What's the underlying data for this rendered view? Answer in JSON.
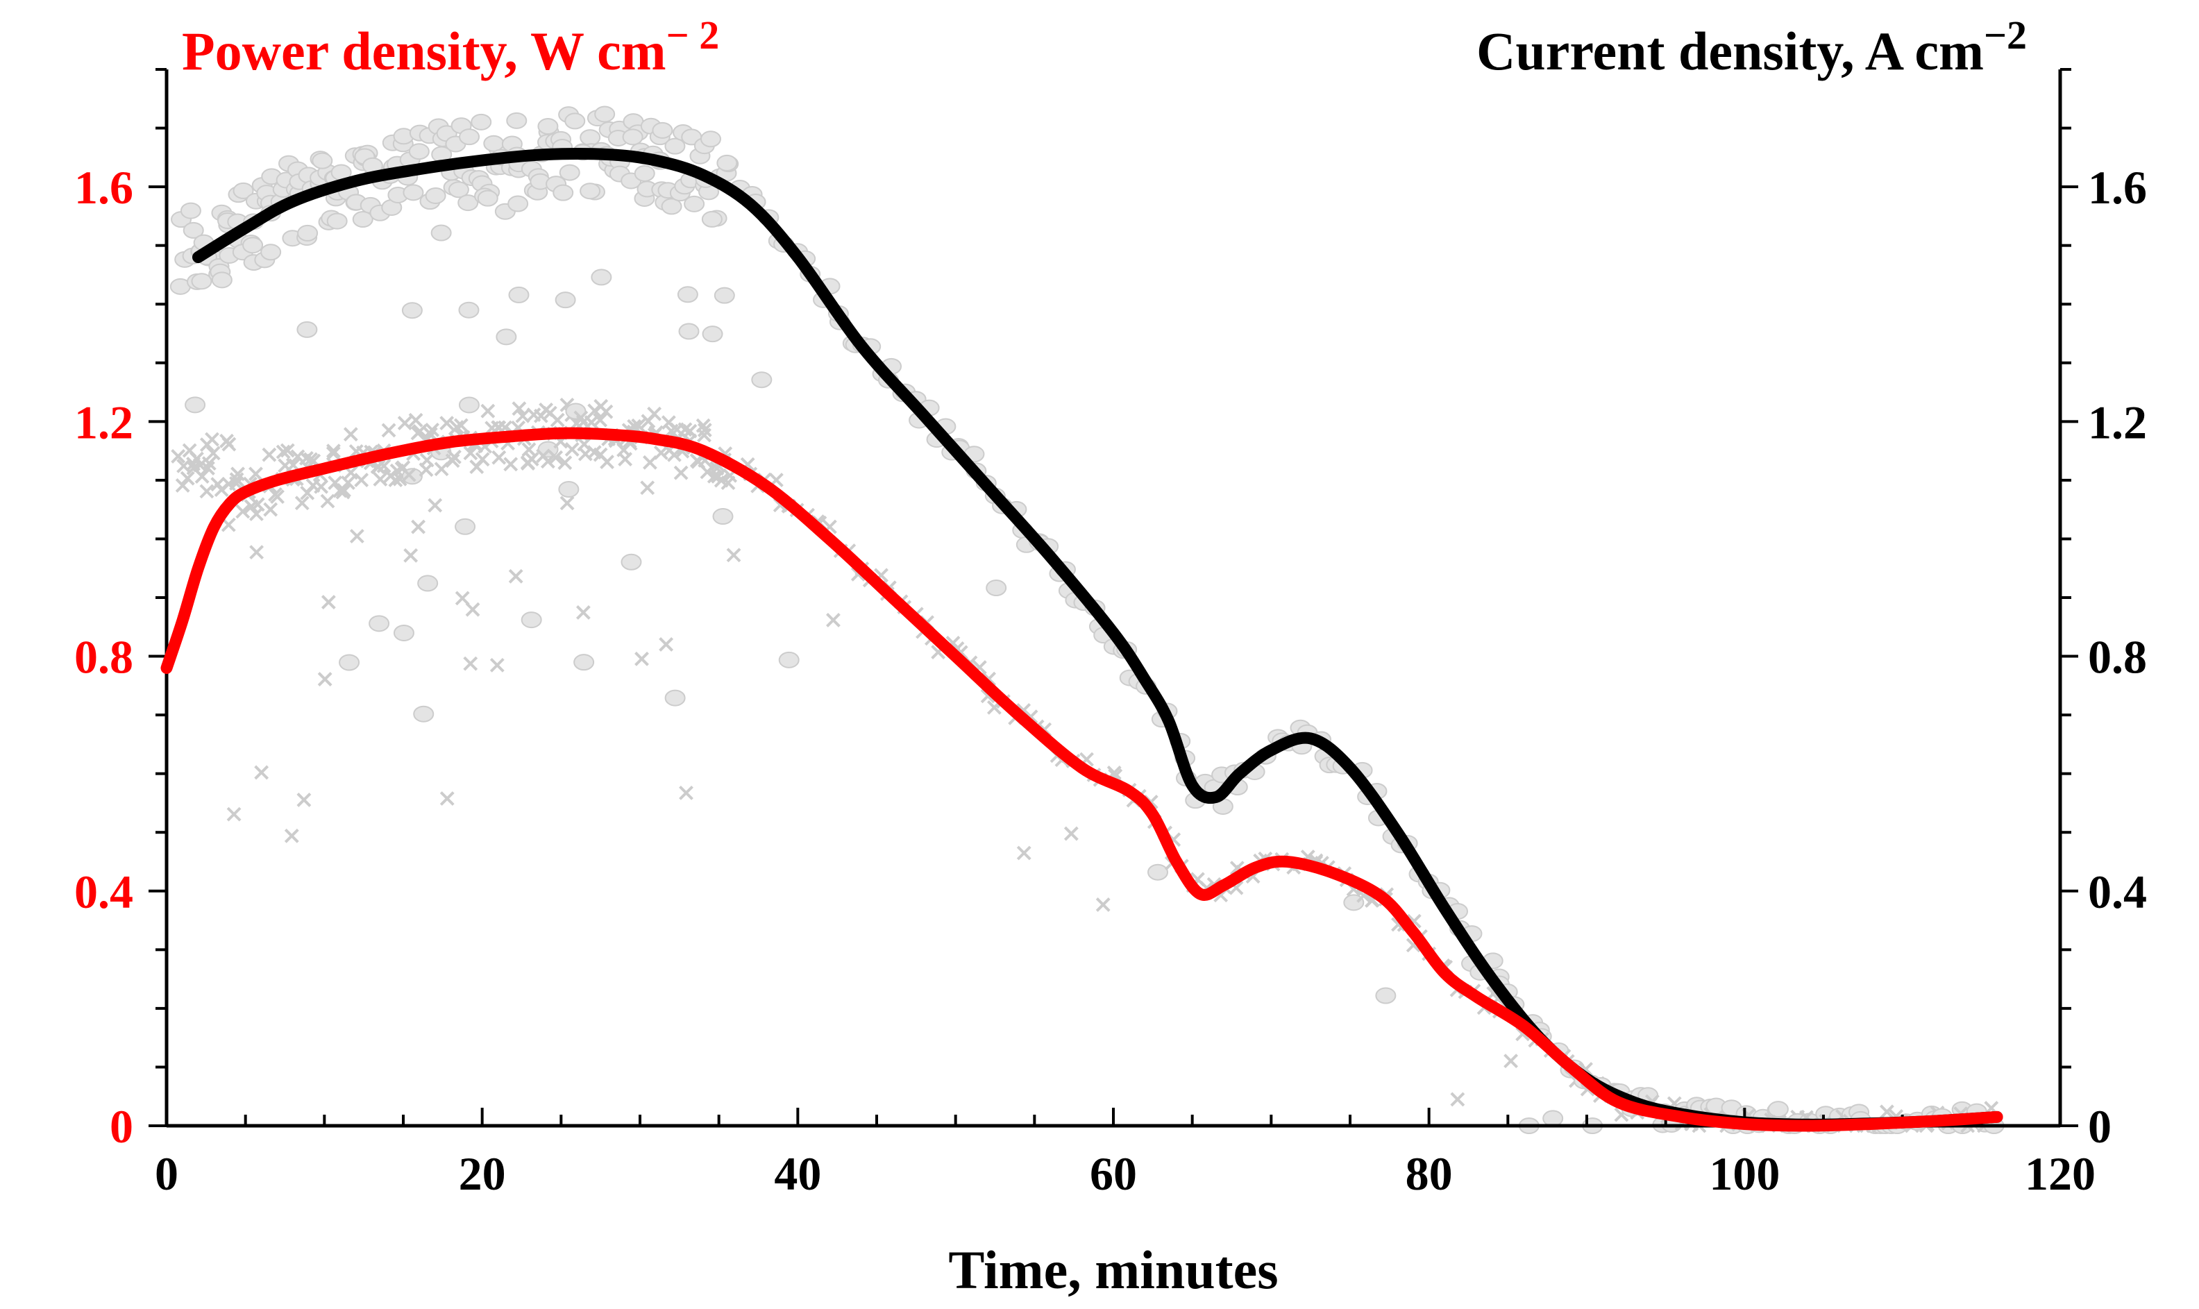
{
  "chart_data": {
    "type": "line",
    "title": "",
    "xlabel": "Time, minutes",
    "ylabel_left": "Power density, W cm − 2",
    "ylabel_right": "Current density, A cm−2",
    "left_axis": {
      "title": "Power density, W cm",
      "superscript": "− 2"
    },
    "right_axis": {
      "title": "Current density, A cm",
      "superscript": "−2"
    },
    "xlim": [
      0,
      120
    ],
    "ylim": [
      0,
      1.8
    ],
    "x_ticks": [
      "0",
      "20",
      "40",
      "60",
      "80",
      "100",
      "120"
    ],
    "x_tick_values": [
      0,
      20,
      40,
      60,
      80,
      100,
      120
    ],
    "y_ticks": [
      "0",
      "0.4",
      "0.8",
      "1.2",
      "1.6"
    ],
    "y_tick_values": [
      0,
      0.4,
      0.8,
      1.2,
      1.6
    ],
    "colors": {
      "power": "#ff0000",
      "current": "#000000",
      "scatter": "#cccccc"
    },
    "series": [
      {
        "name": "Current density, A cm−2 (fit)",
        "axis": "right",
        "color": "#000000",
        "x": [
          2,
          5,
          8,
          12,
          16,
          20,
          24,
          28,
          31,
          34,
          37,
          40,
          44,
          48,
          52,
          56,
          60,
          62,
          63.5,
          65,
          66.5,
          68,
          70,
          72.5,
          75,
          78,
          81,
          84,
          87,
          90,
          93,
          96,
          100,
          104,
          108,
          112,
          116
        ],
        "values": [
          1.48,
          1.53,
          1.575,
          1.61,
          1.63,
          1.645,
          1.655,
          1.655,
          1.645,
          1.62,
          1.57,
          1.48,
          1.33,
          1.21,
          1.09,
          0.97,
          0.84,
          0.76,
          0.69,
          0.58,
          0.56,
          0.6,
          0.64,
          0.66,
          0.61,
          0.5,
          0.37,
          0.25,
          0.15,
          0.08,
          0.04,
          0.02,
          0.006,
          0.002,
          0.004,
          0.008,
          0.015
        ]
      },
      {
        "name": "Power density, W cm−2 (fit)",
        "axis": "left",
        "color": "#ff0000",
        "x": [
          0,
          1,
          2,
          3,
          4,
          5,
          7,
          10,
          14,
          18,
          22,
          25,
          28,
          31,
          34,
          38,
          42,
          46,
          50,
          54,
          58,
          61,
          62.5,
          64,
          65.5,
          67,
          69,
          71,
          74,
          77,
          79,
          81,
          83,
          86,
          89,
          92,
          96,
          100,
          104,
          108,
          112,
          116
        ],
        "values": [
          0.78,
          0.86,
          0.95,
          1.02,
          1.06,
          1.08,
          1.1,
          1.12,
          1.145,
          1.165,
          1.175,
          1.18,
          1.178,
          1.17,
          1.15,
          1.09,
          1.0,
          0.9,
          0.8,
          0.7,
          0.61,
          0.57,
          0.53,
          0.45,
          0.395,
          0.41,
          0.44,
          0.45,
          0.43,
          0.39,
          0.33,
          0.26,
          0.22,
          0.17,
          0.1,
          0.04,
          0.015,
          0.003,
          0.0,
          0.003,
          0.008,
          0.015
        ]
      }
    ],
    "scatter_note": "light grey raw measurements (circles: current, crosses: power)"
  }
}
